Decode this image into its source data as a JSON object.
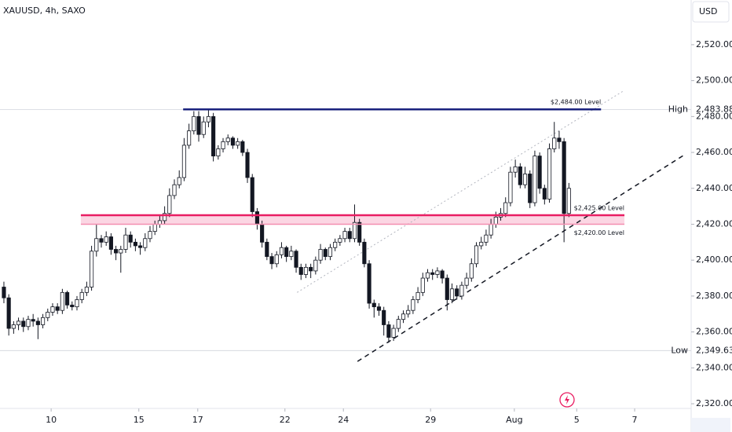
{
  "chart_data": {
    "type": "candlestick",
    "title": "XAUUSD, 4h, SAXO",
    "currency": "USD",
    "up_color": "#ffffff",
    "down_color": "#131722",
    "candles": [
      [
        2385,
        2388,
        2376,
        2379
      ],
      [
        2379,
        2381,
        2358,
        2362
      ],
      [
        2362,
        2366,
        2359,
        2364
      ],
      [
        2364,
        2368,
        2361,
        2366
      ],
      [
        2366,
        2368,
        2360,
        2363
      ],
      [
        2363,
        2369,
        2361,
        2367
      ],
      [
        2367,
        2370,
        2363,
        2366
      ],
      [
        2366,
        2368,
        2356,
        2364
      ],
      [
        2364,
        2370,
        2362,
        2368
      ],
      [
        2368,
        2373,
        2366,
        2371
      ],
      [
        2371,
        2376,
        2369,
        2374
      ],
      [
        2374,
        2376,
        2370,
        2372
      ],
      [
        2372,
        2384,
        2370,
        2382
      ],
      [
        2382,
        2383,
        2373,
        2375
      ],
      [
        2375,
        2377,
        2372,
        2374
      ],
      [
        2374,
        2380,
        2372,
        2378
      ],
      [
        2378,
        2384,
        2376,
        2382
      ],
      [
        2382,
        2388,
        2380,
        2385
      ],
      [
        2385,
        2408,
        2383,
        2405
      ],
      [
        2405,
        2420,
        2402,
        2412
      ],
      [
        2412,
        2414,
        2407,
        2410
      ],
      [
        2410,
        2416,
        2408,
        2413
      ],
      [
        2413,
        2415,
        2403,
        2406
      ],
      [
        2406,
        2408,
        2400,
        2404
      ],
      [
        2404,
        2408,
        2393,
        2406
      ],
      [
        2406,
        2418,
        2404,
        2414
      ],
      [
        2414,
        2416,
        2407,
        2410
      ],
      [
        2410,
        2412,
        2405,
        2408
      ],
      [
        2408,
        2410,
        2403,
        2407
      ],
      [
        2407,
        2415,
        2405,
        2412
      ],
      [
        2412,
        2419,
        2410,
        2416
      ],
      [
        2416,
        2422,
        2414,
        2420
      ],
      [
        2420,
        2425,
        2418,
        2422
      ],
      [
        2422,
        2430,
        2420,
        2426
      ],
      [
        2426,
        2440,
        2424,
        2436
      ],
      [
        2436,
        2445,
        2434,
        2442
      ],
      [
        2442,
        2450,
        2440,
        2446
      ],
      [
        2446,
        2468,
        2444,
        2464
      ],
      [
        2464,
        2476,
        2462,
        2472
      ],
      [
        2472,
        2483,
        2470,
        2480
      ],
      [
        2480,
        2483,
        2466,
        2470
      ],
      [
        2470,
        2480,
        2468,
        2477
      ],
      [
        2477,
        2484,
        2474,
        2480
      ],
      [
        2480,
        2482,
        2455,
        2458
      ],
      [
        2458,
        2464,
        2456,
        2462
      ],
      [
        2462,
        2468,
        2460,
        2466
      ],
      [
        2466,
        2470,
        2464,
        2468
      ],
      [
        2468,
        2469,
        2462,
        2464
      ],
      [
        2464,
        2468,
        2462,
        2466
      ],
      [
        2466,
        2467,
        2458,
        2460
      ],
      [
        2460,
        2462,
        2443,
        2446
      ],
      [
        2446,
        2448,
        2424,
        2427
      ],
      [
        2427,
        2429,
        2417,
        2420
      ],
      [
        2420,
        2422,
        2407,
        2410
      ],
      [
        2410,
        2412,
        2400,
        2402
      ],
      [
        2402,
        2404,
        2395,
        2398
      ],
      [
        2398,
        2405,
        2396,
        2403
      ],
      [
        2403,
        2410,
        2401,
        2407
      ],
      [
        2407,
        2408,
        2399,
        2402
      ],
      [
        2402,
        2408,
        2400,
        2405
      ],
      [
        2405,
        2406,
        2393,
        2396
      ],
      [
        2396,
        2398,
        2389,
        2392
      ],
      [
        2392,
        2398,
        2390,
        2396
      ],
      [
        2396,
        2398,
        2390,
        2394
      ],
      [
        2394,
        2402,
        2392,
        2400
      ],
      [
        2400,
        2409,
        2398,
        2406
      ],
      [
        2406,
        2407,
        2400,
        2402
      ],
      [
        2402,
        2409,
        2400,
        2407
      ],
      [
        2407,
        2412,
        2405,
        2410
      ],
      [
        2410,
        2414,
        2408,
        2412
      ],
      [
        2412,
        2418,
        2410,
        2416
      ],
      [
        2416,
        2418,
        2410,
        2412
      ],
      [
        2412,
        2431,
        2410,
        2421
      ],
      [
        2421,
        2423,
        2408,
        2410
      ],
      [
        2410,
        2412,
        2396,
        2398
      ],
      [
        2398,
        2400,
        2373,
        2376
      ],
      [
        2376,
        2378,
        2368,
        2374
      ],
      [
        2374,
        2376,
        2369,
        2372
      ],
      [
        2372,
        2374,
        2358,
        2364
      ],
      [
        2364,
        2366,
        2354,
        2357
      ],
      [
        2357,
        2364,
        2355,
        2362
      ],
      [
        2362,
        2369,
        2360,
        2367
      ],
      [
        2367,
        2372,
        2365,
        2370
      ],
      [
        2370,
        2375,
        2368,
        2372
      ],
      [
        2372,
        2380,
        2370,
        2378
      ],
      [
        2378,
        2385,
        2376,
        2382
      ],
      [
        2382,
        2393,
        2380,
        2390
      ],
      [
        2390,
        2395,
        2388,
        2393
      ],
      [
        2393,
        2395,
        2389,
        2392
      ],
      [
        2392,
        2396,
        2390,
        2394
      ],
      [
        2394,
        2395,
        2387,
        2390
      ],
      [
        2390,
        2392,
        2372,
        2378
      ],
      [
        2378,
        2387,
        2376,
        2384
      ],
      [
        2384,
        2386,
        2378,
        2380
      ],
      [
        2380,
        2388,
        2378,
        2386
      ],
      [
        2386,
        2393,
        2384,
        2390
      ],
      [
        2390,
        2401,
        2388,
        2398
      ],
      [
        2398,
        2410,
        2396,
        2408
      ],
      [
        2408,
        2413,
        2406,
        2410
      ],
      [
        2410,
        2417,
        2408,
        2414
      ],
      [
        2414,
        2423,
        2412,
        2420
      ],
      [
        2420,
        2427,
        2418,
        2424
      ],
      [
        2424,
        2429,
        2422,
        2426
      ],
      [
        2426,
        2435,
        2424,
        2432
      ],
      [
        2432,
        2452,
        2430,
        2449
      ],
      [
        2449,
        2456,
        2446,
        2452
      ],
      [
        2452,
        2454,
        2440,
        2442
      ],
      [
        2442,
        2452,
        2440,
        2448
      ],
      [
        2448,
        2450,
        2429,
        2432
      ],
      [
        2432,
        2461,
        2430,
        2458
      ],
      [
        2458,
        2460,
        2437,
        2440
      ],
      [
        2440,
        2442,
        2431,
        2434
      ],
      [
        2434,
        2465,
        2432,
        2462
      ],
      [
        2462,
        2477,
        2460,
        2468
      ],
      [
        2468,
        2472,
        2462,
        2466
      ],
      [
        2466,
        2468,
        2410,
        2426
      ],
      [
        2426,
        2443,
        2424,
        2440
      ]
    ],
    "xlim": [
      -0.8,
      141.1
    ],
    "xticks": [
      {
        "value": 9.7,
        "label": "10"
      },
      {
        "value": 27.7,
        "label": "15"
      },
      {
        "value": 39.8,
        "label": "17"
      },
      {
        "value": 57.7,
        "label": "22"
      },
      {
        "value": 69.7,
        "label": "24"
      },
      {
        "value": 87.6,
        "label": "29"
      },
      {
        "value": 104.8,
        "label": "Aug"
      },
      {
        "value": 117.6,
        "label": "5"
      },
      {
        "value": 129.5,
        "label": "7"
      }
    ],
    "ylim": [
      2317.4,
      2544.9
    ],
    "yticks": [
      {
        "value": 2320,
        "label": "2,320.00"
      },
      {
        "value": 2340,
        "label": "2,340.00"
      },
      {
        "value": 2360,
        "label": "2,360.00"
      },
      {
        "value": 2380,
        "label": "2,380.00"
      },
      {
        "value": 2400,
        "label": "2,400.00"
      },
      {
        "value": 2420,
        "label": "2,420.00"
      },
      {
        "value": 2440,
        "label": "2,440.00"
      },
      {
        "value": 2460,
        "label": "2,460.00"
      },
      {
        "value": 2480,
        "label": "2,480.00"
      },
      {
        "value": 2500,
        "label": "2,500.00"
      },
      {
        "value": 2520,
        "label": "2,520.00"
      }
    ],
    "price_markers": [
      {
        "name": "High",
        "value": 2483.88,
        "label": "2,483.88"
      },
      {
        "name": "Low",
        "value": 2349.63,
        "label": "2,349.63"
      }
    ],
    "levels": [
      {
        "label": "$2,484.00 Level",
        "value": 2484,
        "from": 36.8,
        "to": 122.6,
        "color": "#1a237e"
      },
      {
        "label": "$2,425.00 Level",
        "value": 2425,
        "from": 15.8,
        "to": 127.4,
        "color": "#e91e63"
      },
      {
        "label": "$2,420.00 Level",
        "value": 2420,
        "from": 15.8,
        "to": 127.4,
        "color": "#f48fb1"
      }
    ],
    "trendlines": [
      {
        "x": [
          72.6,
          139.5
        ],
        "y": [
          2343.6,
          2458.3
        ],
        "style": "dashed",
        "color": "#131722"
      },
      {
        "x": [
          60.2,
          127.4
        ],
        "y": [
          2382,
          2494.6
        ],
        "style": "dotted",
        "color": "#b2b5be"
      }
    ]
  }
}
